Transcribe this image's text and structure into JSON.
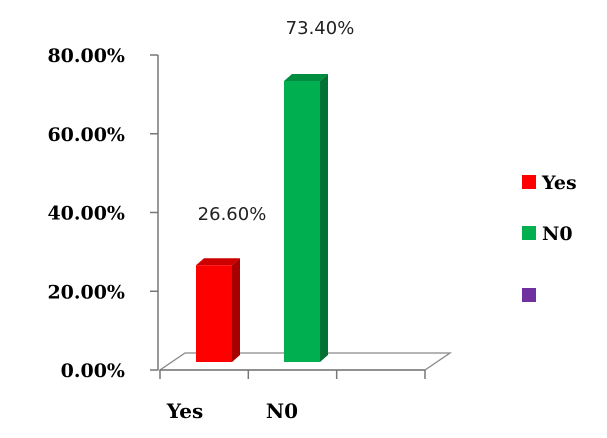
{
  "chart_data": {
    "type": "bar",
    "categories": [
      "Yes",
      "N0"
    ],
    "values": [
      26.6,
      73.4
    ],
    "value_labels": [
      "26.60%",
      "73.40%"
    ],
    "colors": [
      "#ff0000",
      "#00b050"
    ],
    "ytick_labels": [
      "0.00%",
      "20.00%",
      "40.00%",
      "60.00%",
      "80.00%"
    ],
    "ylim": [
      0,
      80
    ],
    "grid": false,
    "three_d": true,
    "legend_position": "right",
    "legend": [
      {
        "label": "Yes",
        "color": "#ff0000"
      },
      {
        "label": "N0",
        "color": "#00b050"
      },
      {
        "label": "",
        "color": "#7030a0"
      }
    ]
  }
}
